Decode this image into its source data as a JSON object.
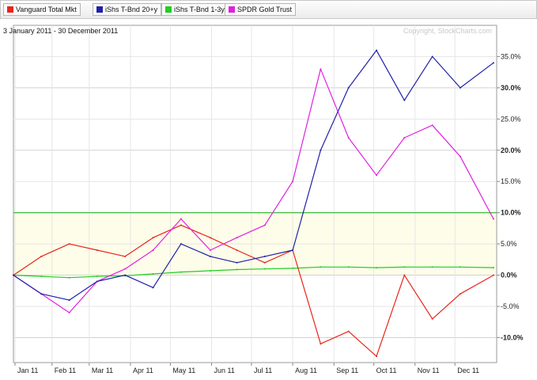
{
  "chart_data": {
    "type": "line",
    "date_range": "3 January 2011 - 30 December 2011",
    "copyright": "Copyright, StockCharts.com",
    "x_ticks": [
      "Jan 11",
      "Feb 11",
      "Mar 11",
      "Apr 11",
      "May 11",
      "Jun 11",
      "Jul 11",
      "Aug 11",
      "Sep 11",
      "Oct 11",
      "Nov 11",
      "Dec 11"
    ],
    "y_ticks": [
      {
        "value": 35,
        "label": "35.0%",
        "bold": false
      },
      {
        "value": 30,
        "label": "30.0%",
        "bold": true
      },
      {
        "value": 25,
        "label": "25.0%",
        "bold": false
      },
      {
        "value": 20,
        "label": "20.0%",
        "bold": true
      },
      {
        "value": 15,
        "label": "15.0%",
        "bold": false
      },
      {
        "value": 10,
        "label": "10.0%",
        "bold": true
      },
      {
        "value": 5,
        "label": "5.0%",
        "bold": false
      },
      {
        "value": 0,
        "label": "0.0%",
        "bold": true
      },
      {
        "value": -5,
        "label": "-5.0%",
        "bold": false
      },
      {
        "value": -10,
        "label": "-10.0%",
        "bold": true
      }
    ],
    "ylim": [
      -14,
      40
    ],
    "x": [
      "2011-01-03",
      "2011-01-24",
      "2011-02-14",
      "2011-03-07",
      "2011-03-28",
      "2011-04-18",
      "2011-05-09",
      "2011-05-31",
      "2011-06-20",
      "2011-07-11",
      "2011-08-01",
      "2011-08-22",
      "2011-09-12",
      "2011-10-03",
      "2011-10-24",
      "2011-11-14",
      "2011-12-05",
      "2011-12-30"
    ],
    "grid": true,
    "legend_position": "top",
    "series": [
      {
        "name": "Vanguard Total Mkt",
        "color": "#e8251a",
        "values": [
          0,
          3,
          5,
          4,
          3,
          6,
          8,
          6,
          4,
          2,
          4,
          -11,
          -9,
          -13,
          0,
          -7,
          -3,
          0
        ]
      },
      {
        "name": "iShs T-Bnd 20+y",
        "color": "#2020a8",
        "values": [
          0,
          -3,
          -4,
          -1,
          0,
          -2,
          5,
          3,
          2,
          3,
          4,
          20,
          30,
          36,
          28,
          35,
          30,
          34
        ]
      },
      {
        "name": "iShs T-Bnd 1-3y",
        "color": "#22cc22",
        "values": [
          0,
          -0.2,
          -0.4,
          -0.2,
          -0.1,
          0.2,
          0.5,
          0.7,
          0.9,
          1,
          1.1,
          1.3,
          1.3,
          1.2,
          1.3,
          1.3,
          1.3,
          1.2
        ]
      },
      {
        "name": "SPDR Gold Trust",
        "color": "#e020e0",
        "values": [
          0,
          -3,
          -6,
          -1,
          1,
          4,
          9,
          4,
          6,
          8,
          15,
          33,
          22,
          16,
          22,
          24,
          19,
          9
        ]
      }
    ]
  }
}
